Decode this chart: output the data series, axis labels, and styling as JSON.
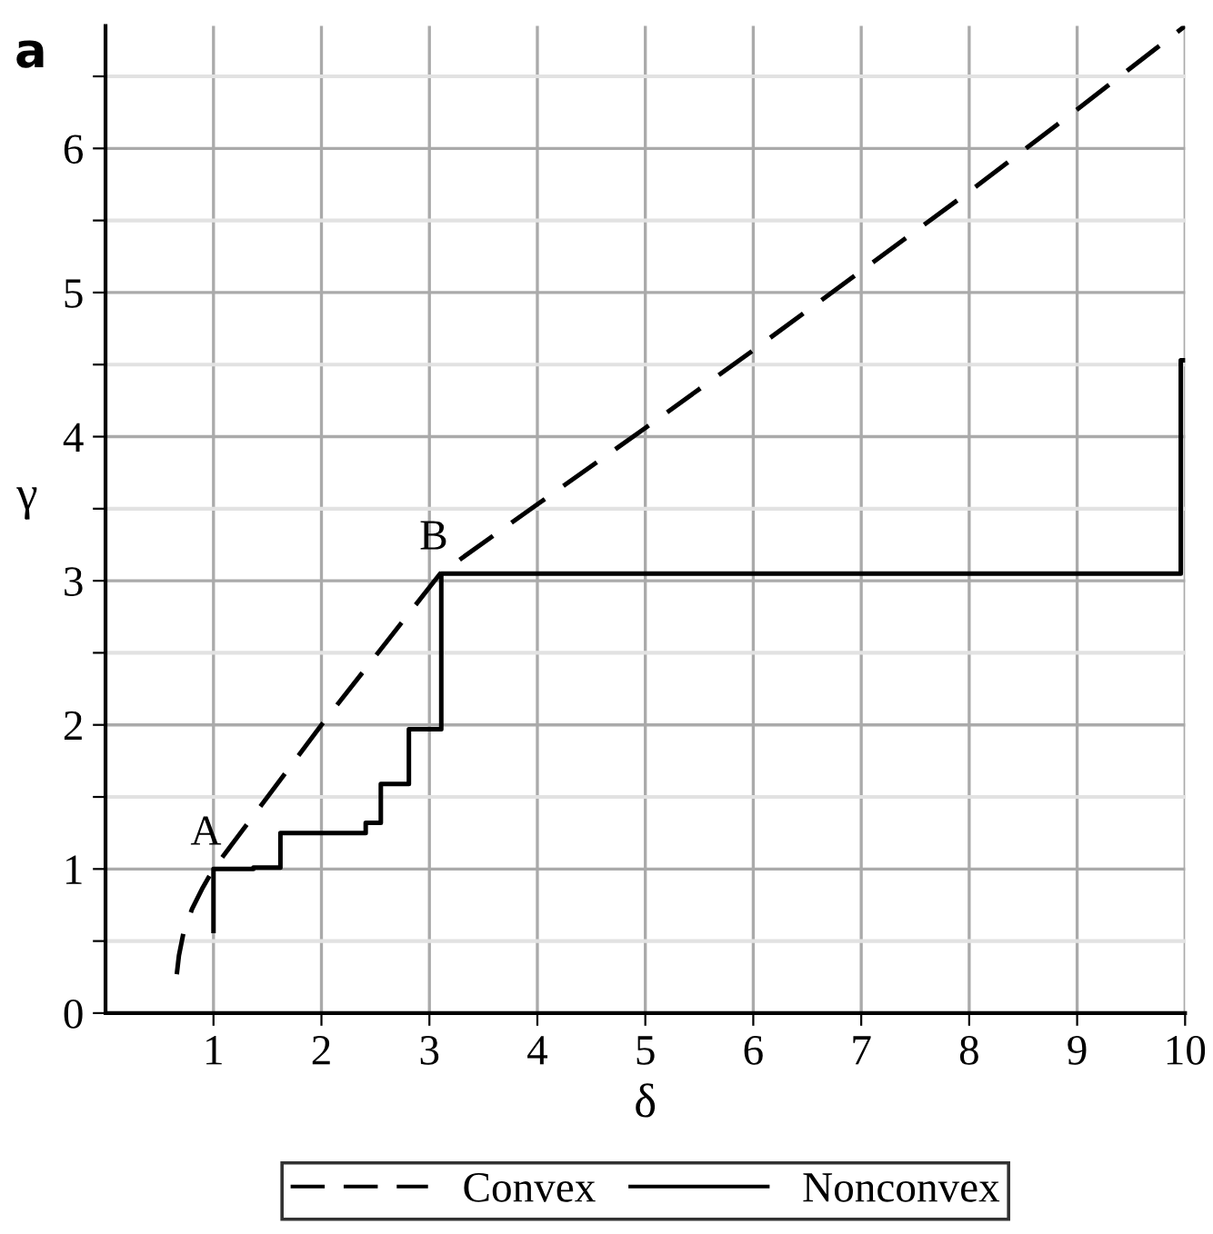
{
  "chart_data": {
    "type": "line",
    "title": "a",
    "xlabel": "δ",
    "ylabel": "γ",
    "xlim": [
      0,
      10
    ],
    "ylim": [
      0,
      6.85
    ],
    "xticks": [
      1,
      2,
      3,
      4,
      5,
      6,
      7,
      8,
      9,
      10
    ],
    "yticks": [
      0,
      {
        "value": 0.5,
        "label": null
      },
      1,
      {
        "value": 1.5,
        "label": null
      },
      2,
      {
        "value": 2.5,
        "label": null
      },
      3,
      {
        "value": 3.5,
        "label": null
      },
      4,
      {
        "value": 4.5,
        "label": null
      },
      5,
      {
        "value": 5.5,
        "label": null
      },
      6,
      {
        "value": 6.5,
        "label": null
      }
    ],
    "grid": true,
    "legend": "bottom",
    "marker": "none",
    "series": [
      {
        "name": "Convex",
        "color": "#000000",
        "line_style": "dashed",
        "x": [
          0.66,
          0.68,
          0.72,
          0.8,
          0.9,
          1.0,
          2.0,
          3.1,
          4.0,
          5.0,
          6.0,
          7.0,
          8.0,
          9.0,
          10.0
        ],
        "values": [
          0.27,
          0.4,
          0.55,
          0.72,
          0.87,
          1.0,
          2.0,
          3.05,
          3.53,
          4.06,
          4.6,
          5.15,
          5.7,
          6.27,
          6.85
        ]
      },
      {
        "name": "Nonconvex",
        "color": "#000000",
        "line_style": "solid",
        "x": [
          1.0,
          1.0,
          1.37,
          1.37,
          1.62,
          1.62,
          2.41,
          2.41,
          2.55,
          2.55,
          2.81,
          2.81,
          3.11,
          3.11,
          9.96,
          9.96,
          10.0
        ],
        "values": [
          0.57,
          1.0,
          1.0,
          1.01,
          1.01,
          1.25,
          1.25,
          1.32,
          1.32,
          1.59,
          1.59,
          1.97,
          1.97,
          3.05,
          3.05,
          4.53,
          4.53
        ]
      }
    ],
    "annotations": [
      {
        "text": "A",
        "x": 1.0,
        "y": 1.0
      },
      {
        "text": "B",
        "x": 3.11,
        "y": 3.05
      }
    ]
  }
}
